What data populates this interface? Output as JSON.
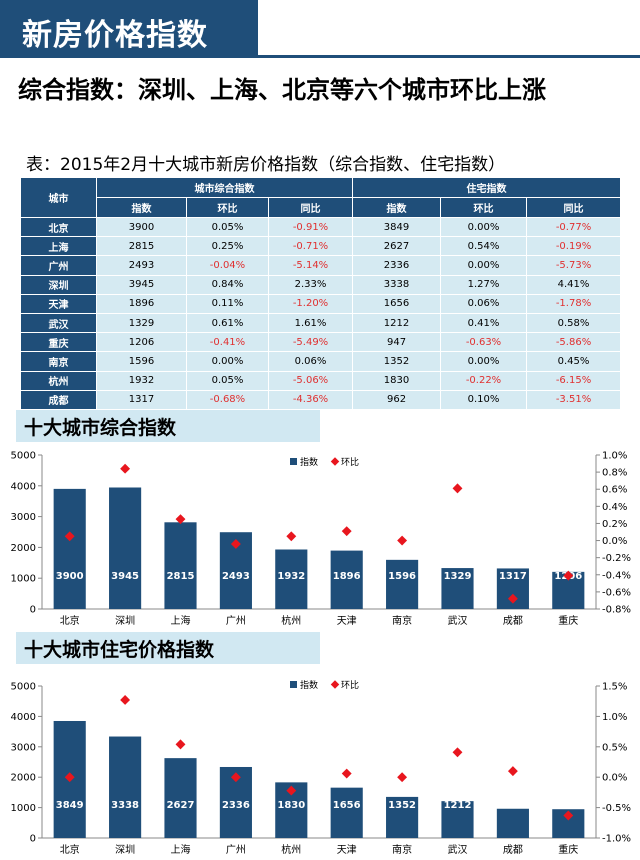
{
  "page": {
    "banner_title": "新房价格指数",
    "headline": "综合指数：深圳、上海、北京等六个城市环比上涨",
    "table_caption": "表：2015年2月十大城市新房价格指数（综合指数、住宅指数）"
  },
  "table": {
    "city_header": "城市",
    "group1_header": "城市综合指数",
    "group2_header": "住宅指数",
    "sub_headers": [
      "指数",
      "环比",
      "同比",
      "指数",
      "环比",
      "同比"
    ],
    "rows": [
      {
        "city": "北京",
        "v": [
          "3900",
          "0.05%",
          "-0.91%",
          "3849",
          "0.00%",
          "-0.77%"
        ]
      },
      {
        "city": "上海",
        "v": [
          "2815",
          "0.25%",
          "-0.71%",
          "2627",
          "0.54%",
          "-0.19%"
        ]
      },
      {
        "city": "广州",
        "v": [
          "2493",
          "-0.04%",
          "-5.14%",
          "2336",
          "0.00%",
          "-5.73%"
        ]
      },
      {
        "city": "深圳",
        "v": [
          "3945",
          "0.84%",
          "2.33%",
          "3338",
          "1.27%",
          "4.41%"
        ]
      },
      {
        "city": "天津",
        "v": [
          "1896",
          "0.11%",
          "-1.20%",
          "1656",
          "0.06%",
          "-1.78%"
        ]
      },
      {
        "city": "武汉",
        "v": [
          "1329",
          "0.61%",
          "1.61%",
          "1212",
          "0.41%",
          "0.58%"
        ]
      },
      {
        "city": "重庆",
        "v": [
          "1206",
          "-0.41%",
          "-5.49%",
          "947",
          "-0.63%",
          "-5.86%"
        ]
      },
      {
        "city": "南京",
        "v": [
          "1596",
          "0.00%",
          "0.06%",
          "1352",
          "0.00%",
          "0.45%"
        ]
      },
      {
        "city": "杭州",
        "v": [
          "1932",
          "0.05%",
          "-5.06%",
          "1830",
          "-0.22%",
          "-6.15%"
        ]
      },
      {
        "city": "成都",
        "v": [
          "1317",
          "-0.68%",
          "-4.36%",
          "962",
          "0.10%",
          "-3.51%"
        ]
      }
    ]
  },
  "colors": {
    "bar": "#1f4e79",
    "marker": "#e8161e",
    "negative": "#e03030"
  },
  "chart_data": [
    {
      "type": "bar",
      "title": "十大城市综合指数",
      "categories": [
        "北京",
        "深圳",
        "上海",
        "广州",
        "杭州",
        "天津",
        "南京",
        "武汉",
        "成都",
        "重庆"
      ],
      "series": [
        {
          "name": "指数",
          "axis": "left",
          "values": [
            3900,
            3945,
            2815,
            2493,
            1932,
            1896,
            1596,
            1329,
            1317,
            1206
          ]
        },
        {
          "name": "环比",
          "axis": "right",
          "kind": "marker",
          "values": [
            0.05,
            0.84,
            0.25,
            -0.04,
            0.05,
            0.11,
            0.0,
            0.61,
            -0.68,
            -0.41
          ]
        }
      ],
      "ylim": [
        0,
        5000
      ],
      "yticks": [
        "0",
        "1000",
        "2000",
        "3000",
        "4000",
        "5000"
      ],
      "y2lim": [
        -0.8,
        1.0
      ],
      "y2ticks": [
        "-0.8%",
        "-0.6%",
        "-0.4%",
        "-0.2%",
        "0.0%",
        "0.2%",
        "0.4%",
        "0.6%",
        "0.8%",
        "1.0%"
      ],
      "legend": [
        "指数",
        "环比"
      ]
    },
    {
      "type": "bar",
      "title": "十大城市住宅价格指数",
      "categories": [
        "北京",
        "深圳",
        "上海",
        "广州",
        "杭州",
        "天津",
        "南京",
        "武汉",
        "成都",
        "重庆"
      ],
      "series": [
        {
          "name": "指数",
          "axis": "left",
          "values": [
            3849,
            3338,
            2627,
            2336,
            1830,
            1656,
            1352,
            1212,
            962,
            947
          ]
        },
        {
          "name": "环比",
          "axis": "right",
          "kind": "marker",
          "values": [
            0.0,
            1.27,
            0.54,
            0.0,
            -0.22,
            0.06,
            0.0,
            0.41,
            0.1,
            -0.63
          ]
        }
      ],
      "ylim": [
        0,
        5000
      ],
      "yticks": [
        "0",
        "1000",
        "2000",
        "3000",
        "4000",
        "5000"
      ],
      "y2lim": [
        -1.0,
        1.5
      ],
      "y2ticks": [
        "-1.0%",
        "-0.5%",
        "0.0%",
        "0.5%",
        "1.0%",
        "1.5%"
      ],
      "legend": [
        "指数",
        "环比"
      ]
    }
  ]
}
